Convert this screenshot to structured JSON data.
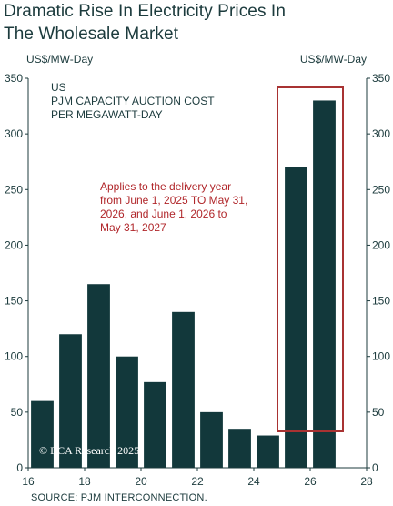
{
  "title_line1": "Dramatic Rise In Electricity Prices In",
  "title_line2": "The Wholesale Market",
  "source": "SOURCE: PJM INTERCONNECTION.",
  "colors": {
    "bar": "#12383b",
    "highlight": "#a83232",
    "text": "#1c3b3d",
    "note": "#b0262a"
  },
  "chart_data": {
    "type": "bar",
    "unit_left": "US$/MW-Day",
    "unit_right": "US$/MW-Day",
    "inset_title": [
      "US",
      "PJM CAPACITY AUCTION COST",
      "PER MEGAWATT-DAY"
    ],
    "annotation": [
      "Applies to the delivery year",
      "from June 1, 2025 TO May 31,",
      "2026, and June 1, 2026 to",
      "May 31, 2027"
    ],
    "watermark": "© BCA Research 2025",
    "x": [
      16.5,
      17.5,
      18.5,
      19.5,
      20.5,
      21.5,
      22.5,
      23.5,
      24.5,
      25.5,
      26.5
    ],
    "values": [
      60,
      120,
      165,
      100,
      77,
      140,
      50,
      35,
      29,
      270,
      330
    ],
    "highlight_range": [
      25,
      27
    ],
    "xlim": [
      16,
      28
    ],
    "ylim": [
      0,
      350
    ],
    "xticks": [
      16,
      18,
      20,
      22,
      24,
      26,
      28
    ],
    "yticks": [
      0,
      50,
      100,
      150,
      200,
      250,
      300,
      350
    ],
    "grid": false
  }
}
